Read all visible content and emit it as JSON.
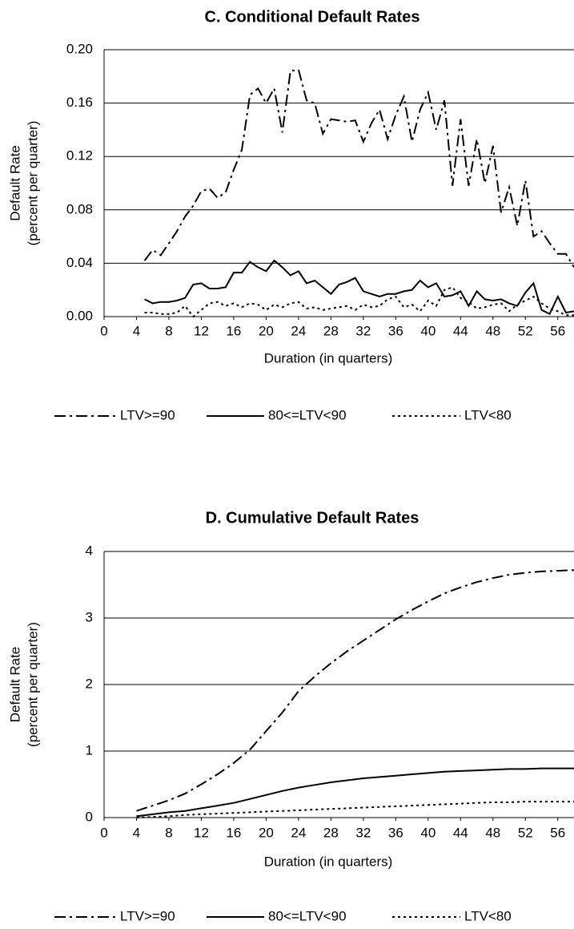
{
  "chart_data": [
    {
      "type": "line",
      "title": "C. Conditional Default Rates",
      "xlabel": "Duration (in quarters)",
      "ylabel": [
        "Default Rate",
        "(percent per quarter)"
      ],
      "x": [
        5,
        6,
        7,
        8,
        9,
        10,
        11,
        12,
        13,
        14,
        15,
        16,
        17,
        18,
        19,
        20,
        21,
        22,
        23,
        24,
        25,
        26,
        27,
        28,
        29,
        30,
        31,
        32,
        33,
        34,
        35,
        36,
        37,
        38,
        39,
        40,
        41,
        42,
        43,
        44,
        45,
        46,
        47,
        48,
        49,
        50,
        51,
        52,
        53,
        54,
        55,
        56,
        57,
        58
      ],
      "series": [
        {
          "name": "LTV>=90",
          "color": "#000000",
          "dash": "dashdot",
          "values": [
            0.042,
            0.05,
            0.046,
            0.055,
            0.064,
            0.075,
            0.083,
            0.094,
            0.096,
            0.089,
            0.093,
            0.11,
            0.125,
            0.166,
            0.171,
            0.16,
            0.171,
            0.138,
            0.184,
            0.185,
            0.162,
            0.16,
            0.137,
            0.148,
            0.147,
            0.146,
            0.147,
            0.131,
            0.145,
            0.155,
            0.133,
            0.151,
            0.165,
            0.131,
            0.155,
            0.168,
            0.14,
            0.162,
            0.098,
            0.148,
            0.098,
            0.133,
            0.1,
            0.128,
            0.078,
            0.097,
            0.068,
            0.102,
            0.06,
            0.064,
            0.055,
            0.047,
            0.047,
            0.037
          ]
        },
        {
          "name": "80<=LTV<90",
          "color": "#000000",
          "dash": "solid",
          "values": [
            0.013,
            0.01,
            0.011,
            0.011,
            0.012,
            0.014,
            0.024,
            0.025,
            0.021,
            0.021,
            0.022,
            0.033,
            0.033,
            0.041,
            0.037,
            0.034,
            0.042,
            0.037,
            0.031,
            0.034,
            0.025,
            0.027,
            0.022,
            0.017,
            0.024,
            0.026,
            0.029,
            0.019,
            0.017,
            0.015,
            0.017,
            0.017,
            0.019,
            0.02,
            0.027,
            0.022,
            0.025,
            0.015,
            0.016,
            0.019,
            0.008,
            0.019,
            0.013,
            0.012,
            0.013,
            0.01,
            0.008,
            0.018,
            0.025,
            0.005,
            0.002,
            0.015,
            0.003,
            0.004
          ]
        },
        {
          "name": "LTV<80",
          "color": "#000000",
          "dash": "dotted",
          "values": [
            0.003,
            0.003,
            0.002,
            0.002,
            0.003,
            0.008,
            0.0,
            0.005,
            0.01,
            0.011,
            0.008,
            0.01,
            0.007,
            0.01,
            0.009,
            0.005,
            0.009,
            0.007,
            0.01,
            0.011,
            0.006,
            0.007,
            0.005,
            0.006,
            0.007,
            0.008,
            0.005,
            0.009,
            0.007,
            0.008,
            0.013,
            0.015,
            0.007,
            0.009,
            0.004,
            0.012,
            0.008,
            0.02,
            0.022,
            0.014,
            0.011,
            0.006,
            0.007,
            0.009,
            0.01,
            0.004,
            0.009,
            0.012,
            0.015,
            0.01,
            0.006,
            0.004,
            0.001,
            0.001
          ]
        }
      ],
      "xlim": [
        0,
        58
      ],
      "xticks": [
        0,
        4,
        8,
        12,
        16,
        20,
        24,
        28,
        32,
        36,
        40,
        44,
        48,
        52,
        56
      ],
      "ylim": [
        0,
        0.2
      ],
      "yticks": [
        {
          "value": 0,
          "label": "0.00"
        },
        {
          "value": 0.04,
          "label": "0.04"
        },
        {
          "value": 0.08,
          "label": "0.08"
        },
        {
          "value": 0.12,
          "label": "0.12"
        },
        {
          "value": 0.16,
          "label": "0.16"
        },
        {
          "value": 0.2,
          "label": "0.20"
        }
      ],
      "grid": true,
      "legend": "bottom"
    },
    {
      "type": "line",
      "title": "D. Cumulative Default Rates",
      "xlabel": "Duration (in quarters)",
      "ylabel": [
        "Default Rate",
        "(percent per quarter)"
      ],
      "x": [
        4,
        6,
        8,
        10,
        12,
        14,
        16,
        18,
        20,
        22,
        24,
        26,
        28,
        30,
        32,
        34,
        36,
        38,
        40,
        42,
        44,
        46,
        48,
        50,
        52,
        54,
        56,
        58
      ],
      "series": [
        {
          "name": "LTV>=90",
          "color": "#000000",
          "dash": "dashdot",
          "values": [
            0.1,
            0.18,
            0.26,
            0.36,
            0.5,
            0.65,
            0.82,
            1.02,
            1.3,
            1.58,
            1.9,
            2.12,
            2.32,
            2.5,
            2.66,
            2.82,
            2.98,
            3.12,
            3.25,
            3.37,
            3.46,
            3.54,
            3.6,
            3.65,
            3.68,
            3.7,
            3.71,
            3.72
          ]
        },
        {
          "name": "80<=LTV<90",
          "color": "#000000",
          "dash": "solid",
          "values": [
            0.02,
            0.05,
            0.08,
            0.1,
            0.14,
            0.18,
            0.22,
            0.28,
            0.34,
            0.4,
            0.45,
            0.49,
            0.53,
            0.56,
            0.59,
            0.61,
            0.63,
            0.65,
            0.67,
            0.69,
            0.7,
            0.71,
            0.72,
            0.73,
            0.73,
            0.74,
            0.74,
            0.74
          ]
        },
        {
          "name": "LTV<80",
          "color": "#000000",
          "dash": "dotted",
          "values": [
            0,
            0.01,
            0.02,
            0.04,
            0.05,
            0.06,
            0.07,
            0.08,
            0.09,
            0.1,
            0.11,
            0.12,
            0.13,
            0.14,
            0.15,
            0.16,
            0.17,
            0.18,
            0.19,
            0.2,
            0.21,
            0.22,
            0.23,
            0.23,
            0.24,
            0.24,
            0.24,
            0.24
          ]
        }
      ],
      "xlim": [
        0,
        58
      ],
      "xticks": [
        0,
        4,
        8,
        12,
        16,
        20,
        24,
        28,
        32,
        36,
        40,
        44,
        48,
        52,
        56
      ],
      "ylim": [
        0,
        4
      ],
      "yticks": [
        0,
        1,
        2,
        3,
        4
      ],
      "grid": true,
      "legend": "bottom"
    }
  ]
}
